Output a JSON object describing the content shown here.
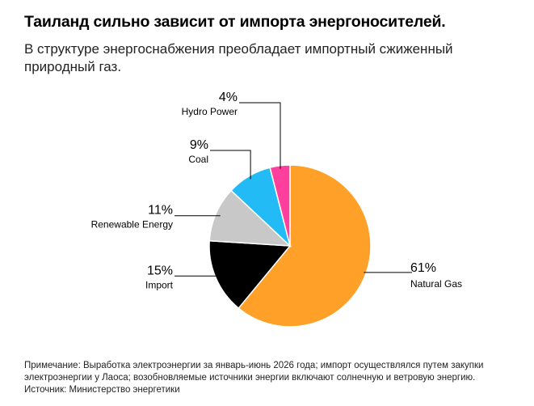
{
  "header": {
    "title": "Таиланд сильно зависит от импорта энергоносителей.",
    "subtitle": "В структуре энергоснабжения преобладает импортный сжиженный природный газ."
  },
  "chart_data": {
    "type": "pie",
    "title": "Таиланд сильно зависит от импорта энергоносителей.",
    "subtitle": "В структуре энергоснабжения преобладает импортный сжиженный природный газ.",
    "unit": "%",
    "slices": [
      {
        "label": "Natural Gas",
        "value": 61,
        "value_label": "61%",
        "color": "#ffa128"
      },
      {
        "label": "Import",
        "value": 15,
        "value_label": "15%",
        "color": "#000000"
      },
      {
        "label": "Renewable Energy",
        "value": 11,
        "value_label": "11%",
        "color": "#c8c8c8"
      },
      {
        "label": "Coal",
        "value": 9,
        "value_label": "9%",
        "color": "#22bbf5"
      },
      {
        "label": "Hydro Power",
        "value": 4,
        "value_label": "4%",
        "color": "#ff3f9c"
      }
    ],
    "start": "12 o'clock",
    "direction": "clockwise",
    "legend": "none"
  },
  "footer": {
    "note_line1": "Примечание: Выработка электроэнергии за январь-июнь 2026 года; импорт осуществлялся путем закупки",
    "note_line2": "электроэнергии у Лаоса; возобновляемые источники энергии включают солнечную и ветровую энергию.",
    "source": "Источник: Министерство энергетики"
  }
}
